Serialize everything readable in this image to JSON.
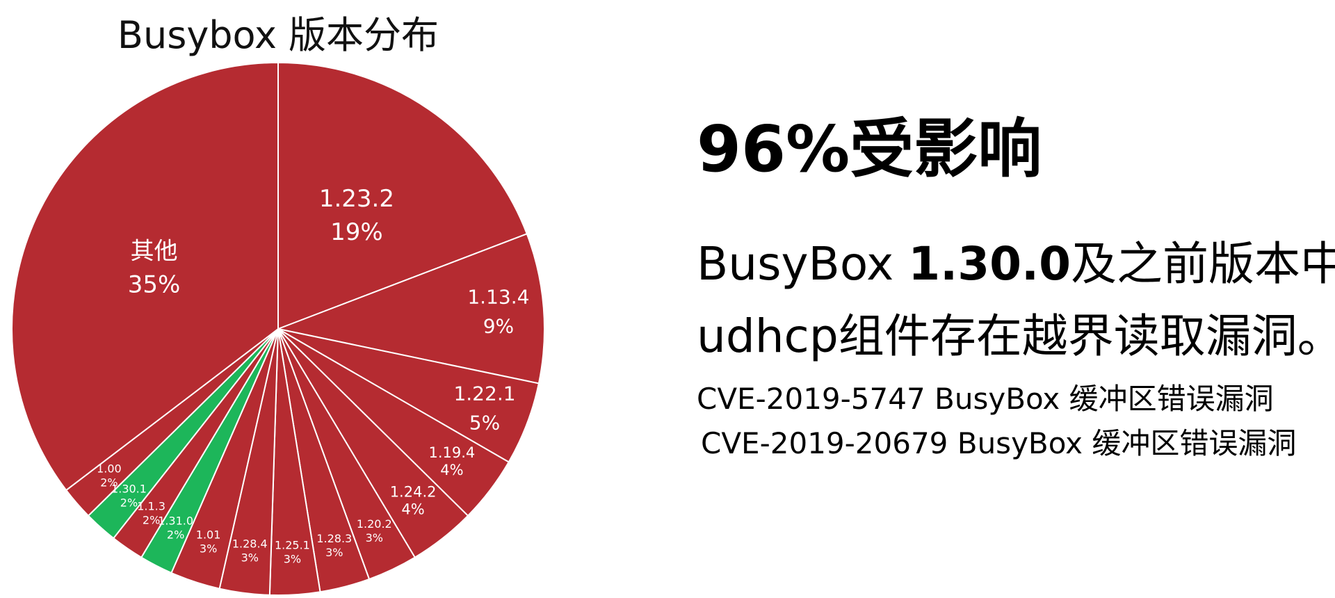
{
  "chart_data": {
    "type": "pie",
    "title": "Busybox 版本分布",
    "start_angle": "12 o'clock, clockwise",
    "colors": {
      "affected": "#B52B31",
      "safe": "#1DB65A",
      "border": "#ffffff"
    },
    "slices": [
      {
        "label": "1.23.2",
        "value": 19,
        "pct": "19%",
        "status": "affected"
      },
      {
        "label": "1.13.4",
        "value": 9,
        "pct": "9%",
        "status": "affected"
      },
      {
        "label": "1.22.1",
        "value": 5,
        "pct": "5%",
        "status": "affected"
      },
      {
        "label": "1.19.4",
        "value": 4,
        "pct": "4%",
        "status": "affected"
      },
      {
        "label": "1.24.2",
        "value": 4,
        "pct": "4%",
        "status": "affected"
      },
      {
        "label": "1.20.2",
        "value": 3,
        "pct": "3%",
        "status": "affected"
      },
      {
        "label": "1.28.3",
        "value": 3,
        "pct": "3%",
        "status": "affected"
      },
      {
        "label": "1.25.1",
        "value": 3,
        "pct": "3%",
        "status": "affected"
      },
      {
        "label": "1.28.4",
        "value": 3,
        "pct": "3%",
        "status": "affected"
      },
      {
        "label": "1.01",
        "value": 3,
        "pct": "3%",
        "status": "affected"
      },
      {
        "label": "1.31.0",
        "value": 2,
        "pct": "2%",
        "status": "safe"
      },
      {
        "label": "1.1.3",
        "value": 2,
        "pct": "2%",
        "status": "affected"
      },
      {
        "label": "1.30.1",
        "value": 2,
        "pct": "2%",
        "status": "safe"
      },
      {
        "label": "1.00",
        "value": 2,
        "pct": "2%",
        "status": "affected"
      },
      {
        "label": "其他",
        "value": 35,
        "pct": "35%",
        "status": "affected"
      }
    ]
  },
  "info": {
    "headline": "96%受影响",
    "desc_line1_prefix": "BusyBox ",
    "desc_line1_bold": "1.30.0",
    "desc_line1_suffix": "及之前版本中的",
    "desc_line2": "udhcp组件存在越界读取漏洞。",
    "cve1": "CVE-2019-5747 BusyBox 缓冲区错误漏洞",
    "cve2": "CVE-2019-20679 BusyBox 缓冲区错误漏洞"
  }
}
